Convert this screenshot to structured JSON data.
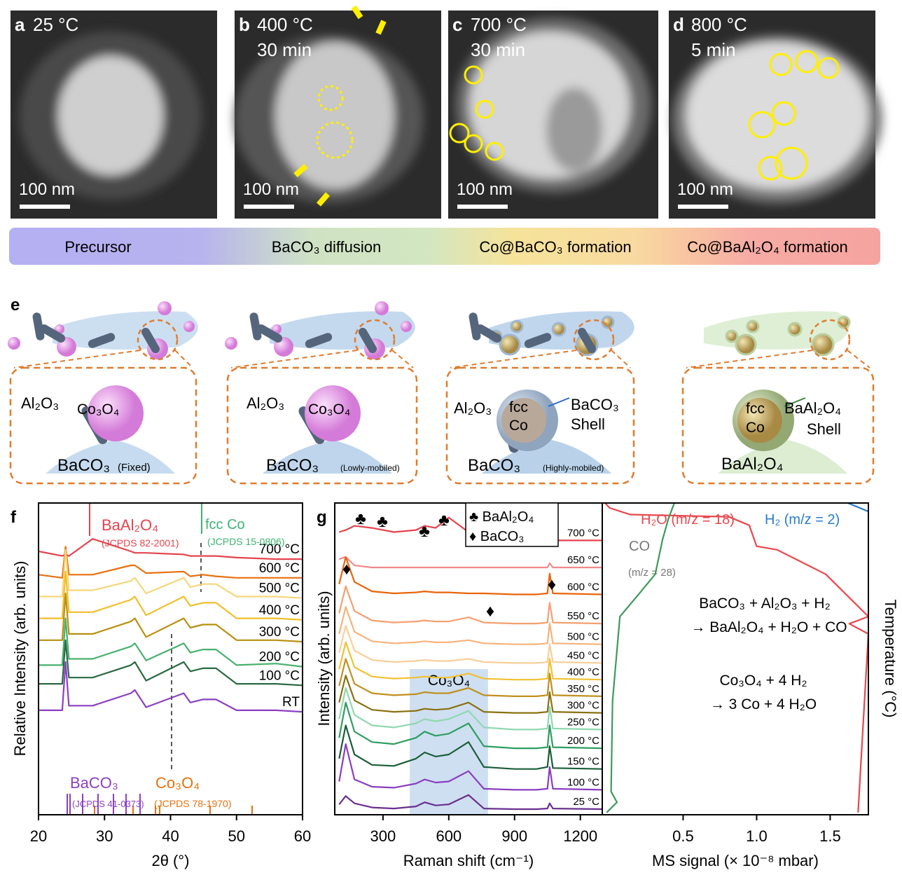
{
  "micrographs": [
    {
      "letter": "a",
      "temperature": "25 °C",
      "scale_bar": "100 nm"
    },
    {
      "letter": "b",
      "temperature": "400 °C",
      "time": "30 min",
      "scale_bar": "100 nm"
    },
    {
      "letter": "c",
      "temperature": "700 °C",
      "time": "30 min",
      "scale_bar": "100 nm"
    },
    {
      "letter": "d",
      "temperature": "800 °C",
      "time": "5 min",
      "scale_bar": "100 nm"
    }
  ],
  "stages": [
    "Precursor",
    "BaCO₃ diffusion",
    "Co@BaCO₃ formation",
    "Co@BaAl₂O₄ formation"
  ],
  "schematic": {
    "letter": "e",
    "panels": [
      {
        "labels": [
          "Al₂O₃",
          "Co₃O₄",
          "BaCO₃",
          "(Fixed)"
        ]
      },
      {
        "labels": [
          "Al₂O₃",
          "Co₃O₄",
          "BaCO₃",
          "(Lowly-mobiled)"
        ]
      },
      {
        "labels": [
          "Al₂O₃",
          "fcc",
          "Co",
          "BaCO₃",
          "Shell",
          "BaCO₃",
          "(Highly-mobiled)"
        ]
      },
      {
        "labels": [
          "fcc",
          "Co",
          "BaAl₂O₄",
          "Shell",
          "BaAl₂O₄"
        ]
      }
    ]
  },
  "chart_data": [
    {
      "type": "line",
      "panel": "f",
      "x_label": "2θ (°)",
      "y_label": "Relative Intensity (arb. units)",
      "x": [
        20,
        23.6,
        24.1,
        24.6,
        28.2,
        34,
        34.6,
        36.3,
        42,
        43,
        44.9,
        46.9,
        50,
        56,
        60
      ],
      "xlim": [
        20,
        60
      ],
      "xticks": [
        20,
        30,
        40,
        50,
        60
      ],
      "ylim": [
        0,
        10
      ],
      "series": [
        {
          "name": "700 °C",
          "color": "#e5434d",
          "values": [
            8.45,
            8.3,
            8.35,
            8.3,
            8.85,
            8.45,
            8.4,
            8.4,
            8.35,
            8.3,
            8.3,
            8.3,
            8.25,
            8.2,
            8.2
          ]
        },
        {
          "name": "600 °C",
          "color": "#e8700f",
          "values": [
            7.7,
            7.6,
            8.6,
            7.7,
            7.7,
            8.0,
            8.0,
            7.75,
            7.8,
            7.65,
            7.7,
            7.65,
            7.6,
            7.6,
            7.6
          ]
        },
        {
          "name": "500 °C",
          "color": "#f5d77a",
          "values": [
            7.0,
            7.0,
            8.5,
            7.2,
            7.2,
            7.5,
            7.6,
            7.1,
            7.6,
            7.3,
            7.4,
            7.4,
            7.0,
            7.0,
            6.95
          ]
        },
        {
          "name": "400 °C",
          "color": "#f2be2a",
          "values": [
            6.3,
            6.3,
            7.8,
            6.5,
            6.5,
            6.9,
            7.0,
            6.4,
            7.0,
            6.7,
            6.8,
            6.8,
            6.3,
            6.3,
            6.25
          ]
        },
        {
          "name": "300 °C",
          "color": "#b8900f",
          "values": [
            5.6,
            5.6,
            7.1,
            5.8,
            5.8,
            6.2,
            6.3,
            5.7,
            6.3,
            6.0,
            6.1,
            6.1,
            5.6,
            5.6,
            5.55
          ]
        },
        {
          "name": "200 °C",
          "color": "#47b06e",
          "values": [
            4.8,
            4.8,
            6.3,
            5.0,
            5.0,
            5.4,
            5.5,
            4.95,
            5.5,
            5.2,
            5.3,
            5.3,
            4.8,
            4.85,
            4.75
          ]
        },
        {
          "name": "100 °C",
          "color": "#2a6a42",
          "values": [
            4.2,
            4.2,
            5.6,
            4.4,
            4.4,
            4.8,
            4.9,
            4.3,
            4.9,
            4.6,
            4.7,
            4.7,
            4.2,
            4.2,
            4.15
          ]
        },
        {
          "name": "RT",
          "color": "#8b3fc2",
          "values": [
            3.35,
            3.35,
            4.9,
            3.5,
            3.5,
            3.9,
            4.0,
            3.45,
            3.9,
            3.6,
            3.7,
            3.7,
            3.35,
            3.35,
            3.3
          ]
        }
      ],
      "annotations": [
        "BaAl₂O₄",
        "(JCPDS 82-2001)",
        "fcc Co",
        "(JCPDS 15-0806)",
        "BaCO₃",
        "(JCPDS 41-0373)",
        "Co₃O₄",
        "(JCPDS 78-1970)"
      ]
    },
    {
      "type": "line",
      "panel": "g",
      "x_label": "Raman shift (cm⁻¹)",
      "y_label": "Intensity (arb. units)",
      "x": [
        100,
        130,
        170,
        250,
        350,
        450,
        490,
        540,
        600,
        690,
        760,
        900,
        1000,
        1050,
        1060,
        1075,
        1300
      ],
      "xlim": [
        80,
        1300
      ],
      "xticks": [
        300,
        600,
        900,
        1200
      ],
      "ylim": [
        0,
        15
      ],
      "legend": [
        "♣ BaAl₂O₄",
        "♦ BaCO₃"
      ],
      "symbols": [
        "♣",
        "♣",
        "♣",
        "♣",
        "♦",
        "♦",
        "♦"
      ],
      "highlight": {
        "label": "Co₃O₄",
        "range": [
          422,
          779
        ]
      },
      "series": [
        {
          "name": "700 °C",
          "color": "#e5434d",
          "values": [
            13.6,
            13.7,
            13.9,
            13.8,
            13.6,
            13.7,
            13.9,
            13.8,
            14.3,
            13.6,
            13.3,
            13.2,
            13.2,
            13.2,
            13.3,
            13.2,
            13.2
          ]
        },
        {
          "name": "650 °C",
          "color": "#f08a8a",
          "values": [
            12.3,
            12.4,
            12.0,
            11.9,
            11.9,
            11.9,
            11.9,
            11.9,
            11.9,
            11.9,
            11.9,
            11.9,
            11.9,
            11.9,
            12.1,
            11.9,
            11.9
          ]
        },
        {
          "name": "600 °C",
          "color": "#e8650a",
          "values": [
            11.1,
            12.4,
            11.2,
            10.75,
            10.65,
            10.7,
            10.75,
            10.7,
            10.7,
            10.65,
            10.65,
            10.6,
            10.6,
            10.65,
            11.6,
            10.65,
            10.6
          ]
        },
        {
          "name": "550 °C",
          "color": "#f5a070",
          "values": [
            9.7,
            11.0,
            9.8,
            9.35,
            9.25,
            9.3,
            9.35,
            9.3,
            9.3,
            9.5,
            9.25,
            9.2,
            9.2,
            9.25,
            10.2,
            9.25,
            9.2
          ]
        },
        {
          "name": "500 °C",
          "color": "#f7b27a",
          "values": [
            8.7,
            10.0,
            8.8,
            8.35,
            8.25,
            8.3,
            8.35,
            8.3,
            8.3,
            8.4,
            8.25,
            8.2,
            8.2,
            8.25,
            9.2,
            8.25,
            8.2
          ]
        },
        {
          "name": "450 °C",
          "color": "#f7cf9a",
          "values": [
            7.8,
            9.1,
            7.9,
            7.45,
            7.35,
            7.4,
            7.45,
            7.4,
            7.4,
            7.5,
            7.35,
            7.3,
            7.3,
            7.35,
            8.2,
            7.35,
            7.3
          ]
        },
        {
          "name": "400 °C",
          "color": "#f2c030",
          "values": [
            7.0,
            8.3,
            7.1,
            6.65,
            6.55,
            6.6,
            6.65,
            6.6,
            6.6,
            6.8,
            6.55,
            6.5,
            6.5,
            6.55,
            7.5,
            6.55,
            6.5
          ]
        },
        {
          "name": "350 °C",
          "color": "#c09020",
          "values": [
            6.2,
            7.5,
            6.3,
            5.85,
            5.75,
            5.8,
            5.9,
            5.85,
            5.85,
            6.1,
            5.75,
            5.7,
            5.7,
            5.75,
            6.8,
            5.75,
            5.7
          ]
        },
        {
          "name": "300 °C",
          "color": "#8a7010",
          "values": [
            5.4,
            6.7,
            5.5,
            5.05,
            4.95,
            5.0,
            5.1,
            5.05,
            5.1,
            5.4,
            4.95,
            4.9,
            4.9,
            4.95,
            5.9,
            4.95,
            4.9
          ]
        },
        {
          "name": "250 °C",
          "color": "#90d8b0",
          "values": [
            4.6,
            6.1,
            4.8,
            4.3,
            4.2,
            4.4,
            4.6,
            4.5,
            4.6,
            5.0,
            4.2,
            4.1,
            4.1,
            4.15,
            5.2,
            4.15,
            4.1
          ]
        },
        {
          "name": "200 °C",
          "color": "#2e9e60",
          "values": [
            3.7,
            5.4,
            4.0,
            3.5,
            3.4,
            3.7,
            4.0,
            3.8,
            3.9,
            4.4,
            3.3,
            3.2,
            3.2,
            3.25,
            4.3,
            3.25,
            3.2
          ]
        },
        {
          "name": "150 °C",
          "color": "#1a5e38",
          "values": [
            2.7,
            4.3,
            2.9,
            2.4,
            2.35,
            2.7,
            3.0,
            2.8,
            2.9,
            3.5,
            2.3,
            2.2,
            2.2,
            2.3,
            3.3,
            2.25,
            2.2
          ]
        },
        {
          "name": "100 °C",
          "color": "#8a3ec0",
          "values": [
            1.6,
            3.4,
            1.7,
            1.35,
            1.3,
            1.5,
            1.7,
            1.55,
            1.6,
            2.1,
            1.25,
            1.2,
            1.2,
            1.25,
            2.3,
            1.25,
            1.2
          ]
        },
        {
          "name": "25 °C",
          "color": "#6a2e90",
          "values": [
            0.5,
            0.9,
            0.55,
            0.35,
            0.3,
            0.4,
            0.6,
            0.45,
            0.5,
            0.95,
            0.3,
            0.27,
            0.27,
            0.3,
            0.55,
            0.3,
            0.27
          ]
        }
      ]
    },
    {
      "type": "line",
      "x_label": "MS signal (× 10⁻⁸ mbar)",
      "y2_label": "Temperature (°C)",
      "xlim": [
        -0.05,
        1.76
      ],
      "xticks": [
        0.5,
        {
          "value": 1,
          "label": "1.0"
        },
        1.5
      ],
      "ylim": [
        20,
        720
      ],
      "series": [
        {
          "name": "H₂O (m/z = 18)",
          "color": "#e8474c",
          "x": [
            1.69,
            1.72,
            1.76,
            1.63,
            1.76,
            1.47,
            1.14,
            1.0,
            0.95,
            0.81,
            0.14,
            0.0,
            -0.03
          ],
          "values": [
            25,
            198,
            426,
            449,
            465,
            560,
            615,
            623,
            670,
            689,
            694,
            709,
            720
          ]
        },
        {
          "name": "H₂ (m/z = 2)",
          "color": "#2a7bd0",
          "x": [
            1.62,
            1.76
          ],
          "values": [
            720,
            701
          ]
        },
        {
          "name": "CO",
          "color": "#3c9a5a",
          "x": [
            -0.02,
            0.05,
            0.01,
            0.02,
            0.07,
            0.19,
            0.31,
            0.36,
            0.4,
            0.44
          ],
          "values": [
            25,
            48,
            72,
            276,
            465,
            512,
            560,
            638,
            685,
            720
          ]
        }
      ],
      "annotations": [
        "(m/z = 28)",
        "BaCO₃ + Al₂O₃ + H₂",
        "→ BaAl₂O₄ + H₂O + CO",
        "Co₃O₄ + 4 H₂",
        "→ 3 Co + 4 H₂O"
      ]
    }
  ]
}
